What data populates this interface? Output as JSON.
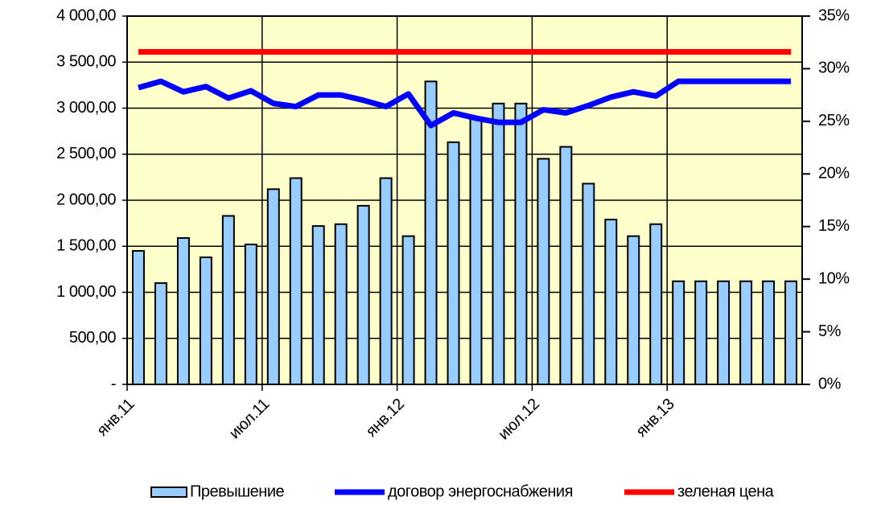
{
  "chart_data": {
    "type": "bar-line",
    "categories": [
      "янв.11",
      null,
      null,
      null,
      null,
      null,
      "июл.11",
      null,
      null,
      null,
      null,
      null,
      "янв.12",
      null,
      null,
      null,
      null,
      null,
      "июл.12",
      null,
      null,
      null,
      null,
      null,
      "янв.13",
      null,
      null,
      null,
      null,
      null
    ],
    "series": [
      {
        "name": "Превышение",
        "type": "bar",
        "color": "#99ccff",
        "values": [
          1450,
          1100,
          1590,
          1380,
          1830,
          1520,
          2120,
          2240,
          1720,
          1740,
          1940,
          2240,
          1610,
          3290,
          2630,
          2900,
          3050,
          3050,
          2450,
          2580,
          2180,
          1790,
          1610,
          1740,
          1120,
          1120,
          1120,
          1120,
          1120,
          1120
        ]
      },
      {
        "name": "договор энергоснабжения",
        "type": "line",
        "axis": "y2",
        "color": "#0000ff",
        "values": [
          28.2,
          28.8,
          27.8,
          28.3,
          27.2,
          27.9,
          26.7,
          26.4,
          27.5,
          27.5,
          27.0,
          26.4,
          27.6,
          24.6,
          25.8,
          25.3,
          24.9,
          24.9,
          26.1,
          25.8,
          26.5,
          27.3,
          27.8,
          27.4,
          28.8,
          28.8,
          28.8,
          28.8,
          28.8,
          28.8
        ]
      },
      {
        "name": "зеленая цена",
        "type": "line",
        "axis": "y2",
        "color": "#ff0000",
        "values": [
          31.6,
          31.6,
          31.6,
          31.6,
          31.6,
          31.6,
          31.6,
          31.6,
          31.6,
          31.6,
          31.6,
          31.6,
          31.6,
          31.6,
          31.6,
          31.6,
          31.6,
          31.6,
          31.6,
          31.6,
          31.6,
          31.6,
          31.6,
          31.6,
          31.6,
          31.6,
          31.6,
          31.6,
          31.6,
          31.6
        ]
      }
    ],
    "ylim": [
      0,
      4000
    ],
    "yticks": [
      {
        "value": 0,
        "label": "-"
      },
      {
        "value": 500,
        "label": "500,00"
      },
      {
        "value": 1000,
        "label": "1 000,00"
      },
      {
        "value": 1500,
        "label": "1 500,00"
      },
      {
        "value": 2000,
        "label": "2 000,00"
      },
      {
        "value": 2500,
        "label": "2 500,00"
      },
      {
        "value": 3000,
        "label": "3 000,00"
      },
      {
        "value": 3500,
        "label": "3 500,00"
      },
      {
        "value": 4000,
        "label": "4 000,00"
      }
    ],
    "y2lim": [
      0,
      35
    ],
    "y2ticks": [
      {
        "value": 0,
        "label": "0%"
      },
      {
        "value": 5,
        "label": "5%"
      },
      {
        "value": 10,
        "label": "10%"
      },
      {
        "value": 15,
        "label": "15%"
      },
      {
        "value": 20,
        "label": "20%"
      },
      {
        "value": 25,
        "label": "25%"
      },
      {
        "value": 30,
        "label": "30%"
      },
      {
        "value": 35,
        "label": "35%"
      }
    ],
    "grid": true,
    "legend": "bottom",
    "plot_background": "#ffffcc"
  }
}
